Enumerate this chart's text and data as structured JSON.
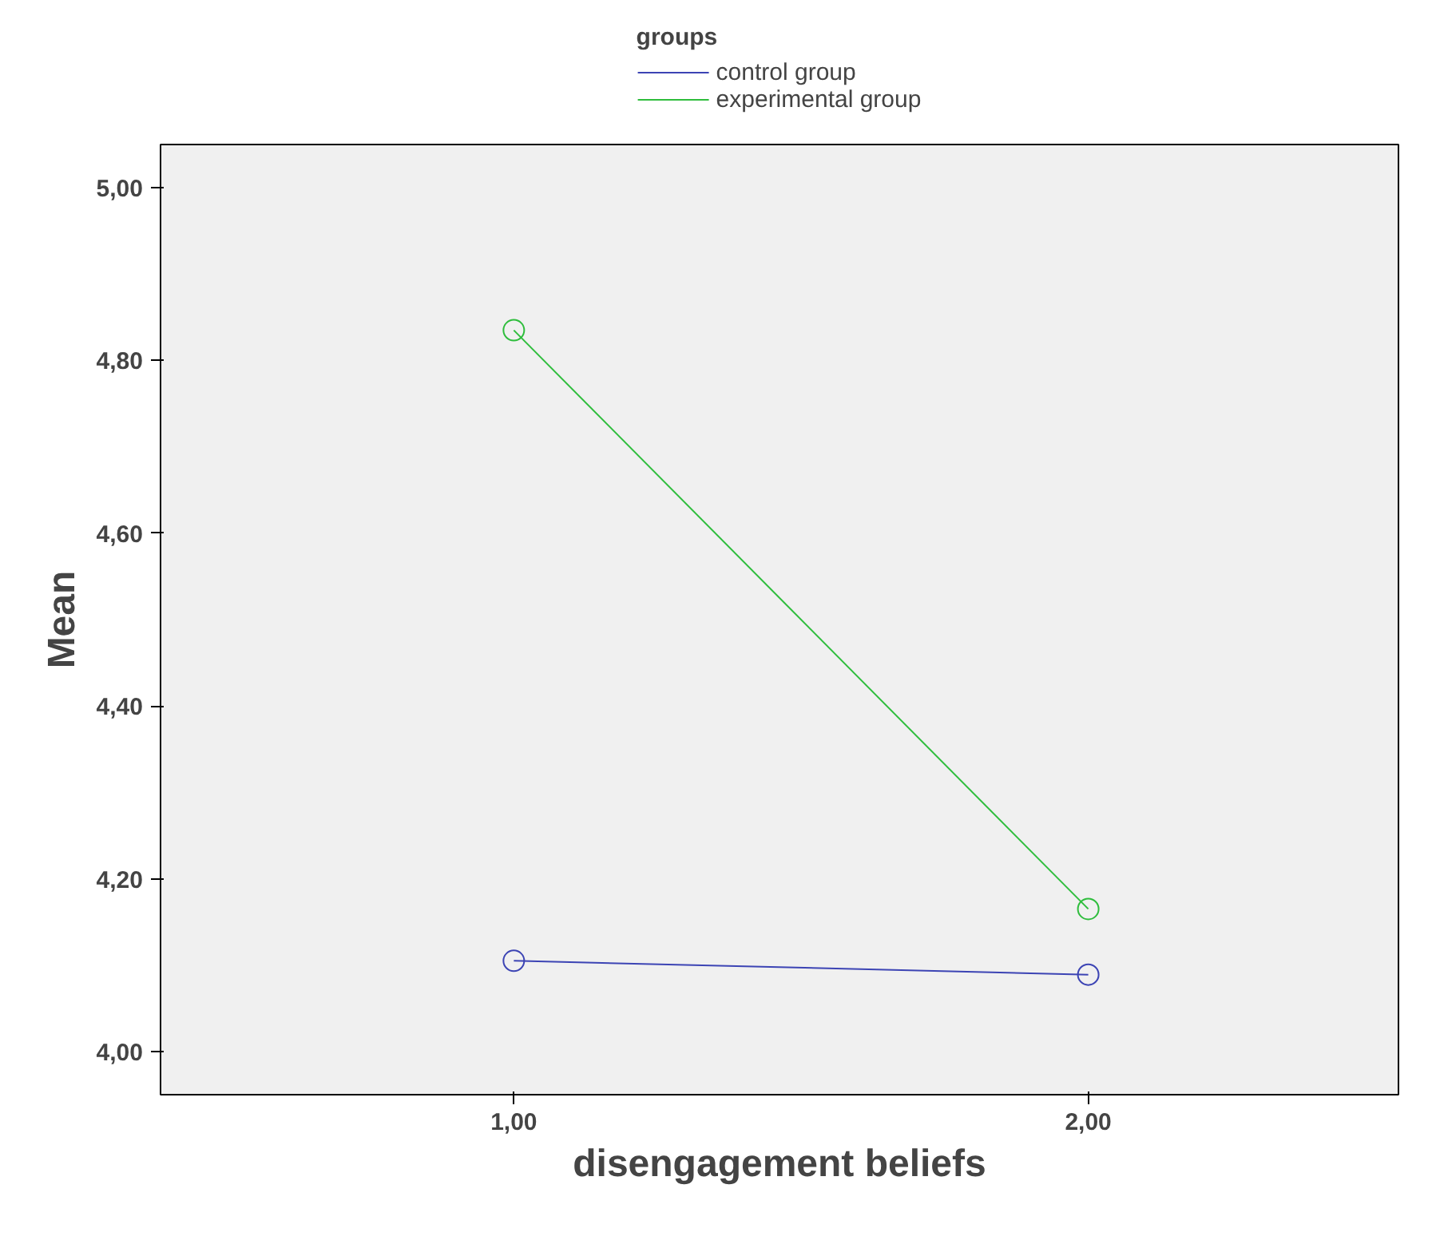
{
  "chart_data": {
    "type": "line",
    "xlabel": "disengagement beliefs",
    "ylabel": "Mean",
    "legend_title": "groups",
    "legend": "top",
    "marker": "circle",
    "line_style": "solid",
    "grid": false,
    "x": [
      1,
      2
    ],
    "series": [
      {
        "name": "control group",
        "color": "#3c44b4",
        "values": [
          4.105,
          4.089
        ]
      },
      {
        "name": "experimental group",
        "color": "#2ebd3c",
        "values": [
          4.835,
          4.165
        ]
      }
    ],
    "xlim": [
      0.385,
      2.54
    ],
    "ylim": [
      3.95,
      5.05
    ],
    "xticks": [
      {
        "value": 1,
        "label": "1,00"
      },
      {
        "value": 2,
        "label": "2,00"
      }
    ],
    "yticks": [
      {
        "value": 4.0,
        "label": "4,00"
      },
      {
        "value": 4.2,
        "label": "4,20"
      },
      {
        "value": 4.4,
        "label": "4,40"
      },
      {
        "value": 4.6,
        "label": "4,60"
      },
      {
        "value": 4.8,
        "label": "4,80"
      },
      {
        "value": 5.0,
        "label": "5,00"
      }
    ]
  }
}
